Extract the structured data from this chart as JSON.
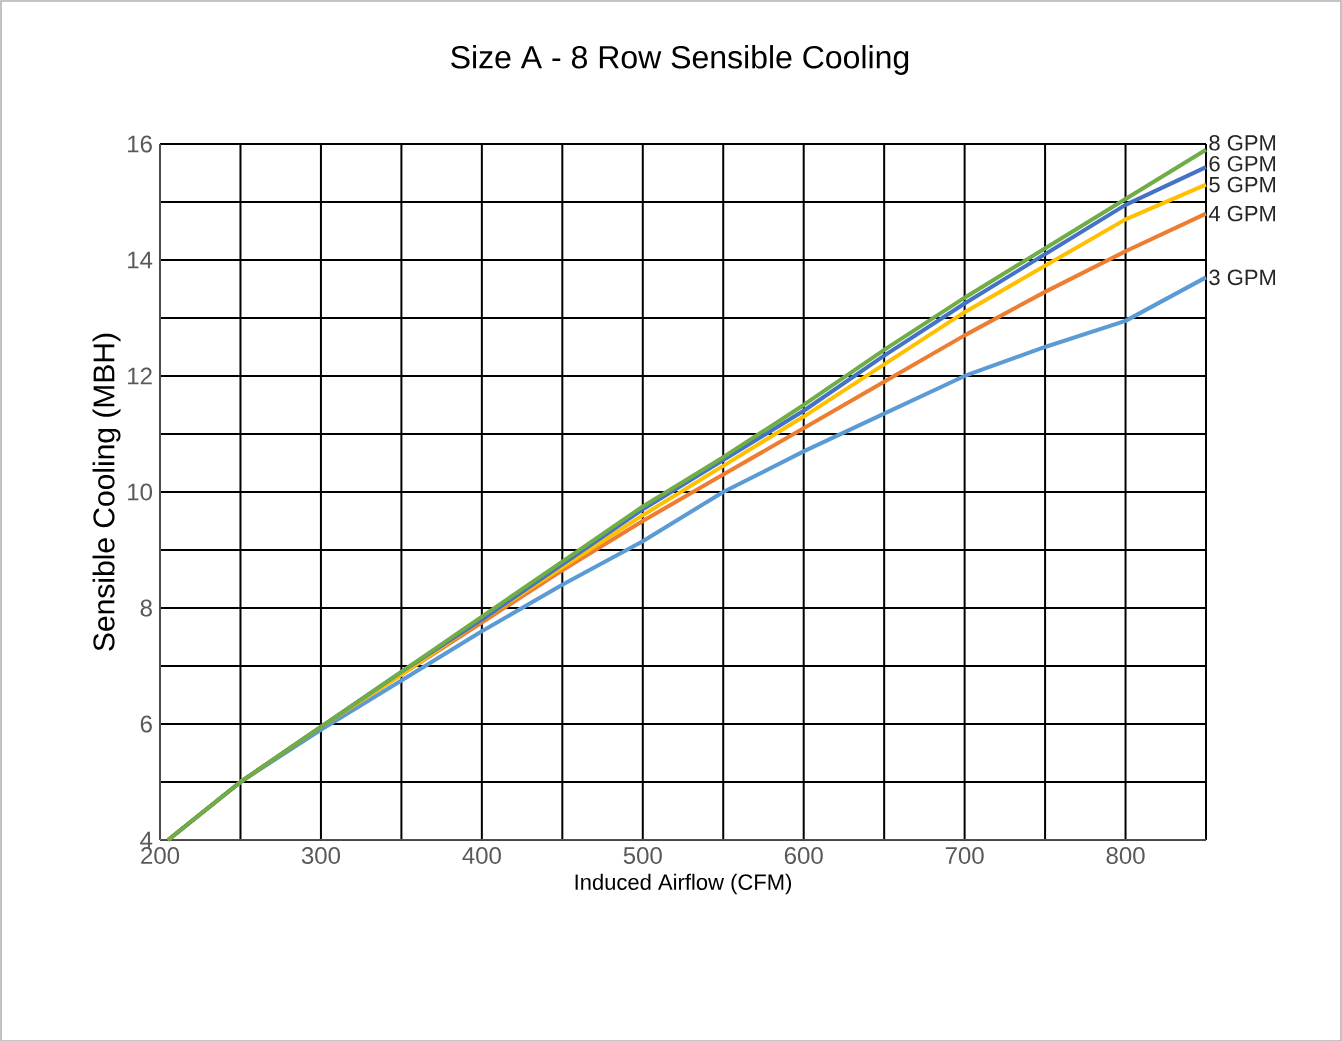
{
  "chart_data": {
    "type": "line",
    "title": "Size A - 8 Row Sensible Cooling",
    "xlabel": "Induced Airflow (CFM)",
    "ylabel": "Sensible Cooling (MBH)",
    "xlim": [
      200,
      850
    ],
    "ylim": [
      4,
      16
    ],
    "xticks": [
      200,
      {
        "value": 250,
        "label": null
      },
      300,
      {
        "value": 350,
        "label": null
      },
      400,
      {
        "value": 450,
        "label": null
      },
      500,
      {
        "value": 550,
        "label": null
      },
      600,
      {
        "value": 650,
        "label": null
      },
      700,
      {
        "value": 750,
        "label": null
      },
      800,
      {
        "value": 850,
        "label": null
      }
    ],
    "yticks": [
      4,
      {
        "value": 5,
        "label": null
      },
      6,
      {
        "value": 7,
        "label": null
      },
      8,
      {
        "value": 9,
        "label": null
      },
      10,
      {
        "value": 11,
        "label": null
      },
      12,
      {
        "value": 13,
        "label": null
      },
      14,
      {
        "value": 15,
        "label": null
      },
      16
    ],
    "grid": true,
    "legend": false,
    "marker": "none",
    "line_style": "solid",
    "x": [
      205,
      250,
      300,
      350,
      400,
      450,
      500,
      550,
      600,
      650,
      700,
      750,
      800,
      850
    ],
    "series": [
      {
        "name": "3 GPM",
        "color": "#5b9bd5",
        "values": [
          4.0,
          5.0,
          5.9,
          6.75,
          7.6,
          8.4,
          9.15,
          10.0,
          10.7,
          11.35,
          12.0,
          12.5,
          12.95,
          13.7
        ]
      },
      {
        "name": "4 GPM",
        "color": "#ed7d31",
        "values": [
          4.0,
          5.0,
          5.95,
          6.85,
          7.75,
          8.65,
          9.5,
          10.3,
          11.1,
          11.9,
          12.7,
          13.45,
          14.15,
          14.8
        ]
      },
      {
        "name": "5 GPM",
        "color": "#ffc000",
        "values": [
          4.0,
          5.0,
          5.95,
          6.85,
          7.8,
          8.7,
          9.6,
          10.45,
          11.3,
          12.2,
          13.1,
          13.9,
          14.7,
          15.3
        ]
      },
      {
        "name": "6 GPM",
        "color": "#4472c4",
        "values": [
          4.0,
          5.0,
          5.95,
          6.9,
          7.8,
          8.75,
          9.7,
          10.55,
          11.4,
          12.35,
          13.25,
          14.1,
          14.95,
          15.6
        ]
      },
      {
        "name": "8 GPM",
        "color": "#70ad47",
        "values": [
          4.0,
          5.0,
          5.95,
          6.9,
          7.85,
          8.8,
          9.75,
          10.6,
          11.5,
          12.45,
          13.35,
          14.2,
          15.05,
          15.9
        ]
      }
    ]
  }
}
